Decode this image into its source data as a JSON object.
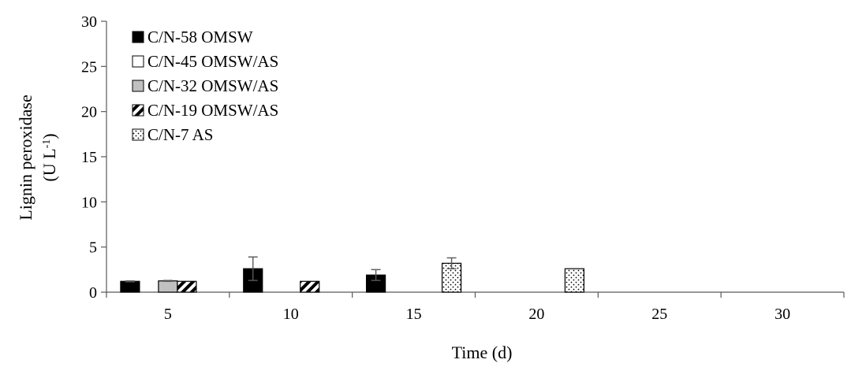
{
  "chart_data": {
    "type": "bar",
    "xlabel": "Time (d)",
    "ylabel_line1": "Lignin peroxidase",
    "ylabel_line2": "(U L",
    "ylabel_sup": "-1",
    "ylabel_close": ")",
    "ylim": [
      0,
      30
    ],
    "yticks": [
      "0",
      "5",
      "10",
      "15",
      "20",
      "25",
      "30"
    ],
    "categories": [
      "5",
      "10",
      "15",
      "20",
      "25",
      "30"
    ],
    "legend_position": "top-left",
    "grid": false,
    "series": [
      {
        "name": "C/N-58 OMSW",
        "pattern": "solid-black",
        "values": [
          1.2,
          2.6,
          1.9,
          0,
          0,
          0
        ],
        "errors": [
          0.05,
          1.3,
          0.6,
          0,
          0,
          0
        ]
      },
      {
        "name": "C/N-45 OMSW/AS",
        "pattern": "white",
        "values": [
          0,
          0,
          0,
          0,
          0,
          0
        ],
        "errors": [
          0,
          0,
          0,
          0,
          0,
          0
        ]
      },
      {
        "name": "C/N-32 OMSW/AS",
        "pattern": "gray",
        "values": [
          1.25,
          0,
          0,
          0,
          0,
          0
        ],
        "errors": [
          0.05,
          0,
          0,
          0,
          0,
          0
        ]
      },
      {
        "name": "C/N-19 OMSW/AS",
        "pattern": "diagonal-stripes",
        "values": [
          1.2,
          1.2,
          0,
          0,
          0,
          0
        ],
        "errors": [
          0,
          0,
          0,
          0,
          0,
          0
        ]
      },
      {
        "name": "C/N-7 AS",
        "pattern": "dots",
        "values": [
          0,
          0,
          3.2,
          2.6,
          0,
          0
        ],
        "errors": [
          0,
          0,
          0.6,
          0,
          0,
          0
        ]
      }
    ],
    "colors": {
      "black": "#000000",
      "gray": "#c0c0c0",
      "white": "#ffffff",
      "axis": "#595959"
    }
  }
}
